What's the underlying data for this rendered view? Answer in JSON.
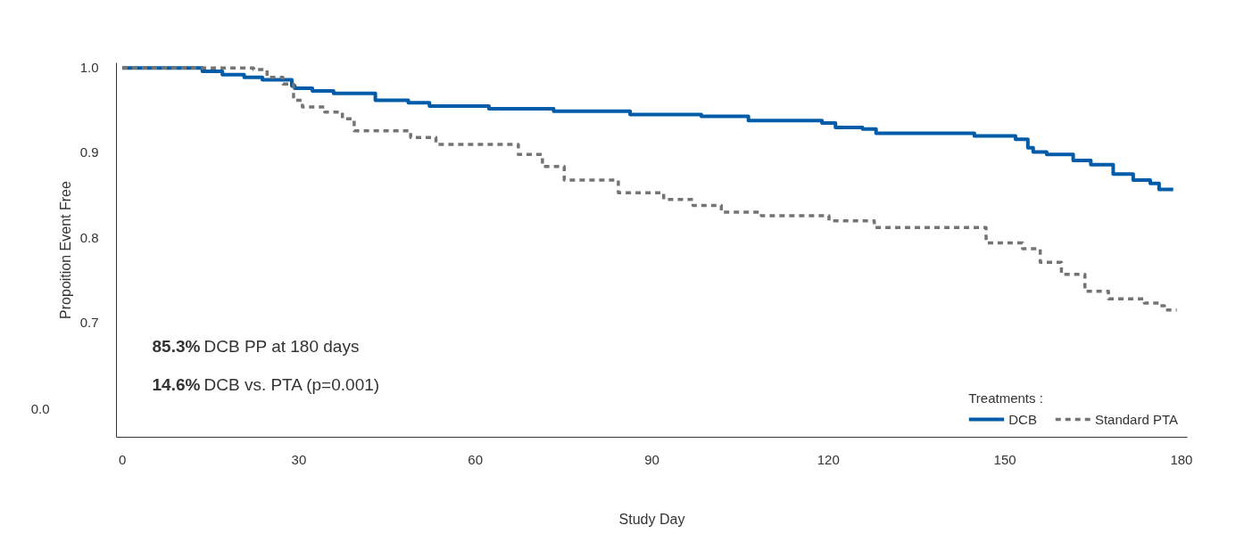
{
  "chart_data": {
    "type": "step",
    "xlabel": "Study Day",
    "ylabel": "Propoition Event Free",
    "xlim": [
      -1,
      181
    ],
    "xticks": [
      0,
      30,
      60,
      90,
      120,
      150,
      180
    ],
    "ylim": [
      0.565,
      1.006
    ],
    "yticks": [
      0.7,
      0.8,
      0.9,
      {
        "value": 1.0,
        "label": "1.0"
      }
    ],
    "grid": false,
    "legend": "bottom right",
    "legend_title": "Treatments :",
    "annotations": [
      "85.3% DCB PP at 180 days",
      "14.6% DCB vs. PTA (p=0.001)",
      "0.0"
    ],
    "series": [
      {
        "name": "DCB",
        "color": "#005ca9",
        "line_style": "solid",
        "x": [
          0,
          13.6,
          17.0,
          20.7,
          23.8,
          28.8,
          29.3,
          32.3,
          35.9,
          43.0,
          48.6,
          52.2,
          62.3,
          73.3,
          86.3,
          98.4,
          106.4,
          118.9,
          121.2,
          125.8,
          128.1,
          144.8,
          151.8,
          153.9,
          154.8,
          157.1,
          161.6,
          164.6,
          168.4,
          171.8,
          174.7,
          176.2,
          178.6
        ],
        "values": [
          1.0,
          0.996,
          0.992,
          0.989,
          0.986,
          0.979,
          0.976,
          0.973,
          0.97,
          0.962,
          0.959,
          0.955,
          0.952,
          0.949,
          0.945,
          0.943,
          0.938,
          0.935,
          0.93,
          0.928,
          0.923,
          0.92,
          0.916,
          0.906,
          0.901,
          0.898,
          0.891,
          0.886,
          0.875,
          0.868,
          0.864,
          0.857,
          0.857
        ]
      },
      {
        "name": "Standard PTA",
        "color": "#747474",
        "line_style": "dashed",
        "x": [
          0,
          22.3,
          24.6,
          27.3,
          29.1,
          30.6,
          34.4,
          37.4,
          39.4,
          49.0,
          53.3,
          67.3,
          71.4,
          75.1,
          84.3,
          92.0,
          97.0,
          101.8,
          108.6,
          120.1,
          127.8,
          146.8,
          153.0,
          156.0,
          159.6,
          163.6,
          167.6,
          173.7,
          176.2,
          177.1,
          179.2
        ],
        "values": [
          1.0,
          0.998,
          0.989,
          0.981,
          0.962,
          0.954,
          0.948,
          0.94,
          0.926,
          0.918,
          0.91,
          0.898,
          0.884,
          0.868,
          0.853,
          0.845,
          0.838,
          0.83,
          0.826,
          0.82,
          0.812,
          0.794,
          0.787,
          0.771,
          0.757,
          0.737,
          0.728,
          0.723,
          0.72,
          0.715,
          0.715
        ]
      }
    ]
  }
}
